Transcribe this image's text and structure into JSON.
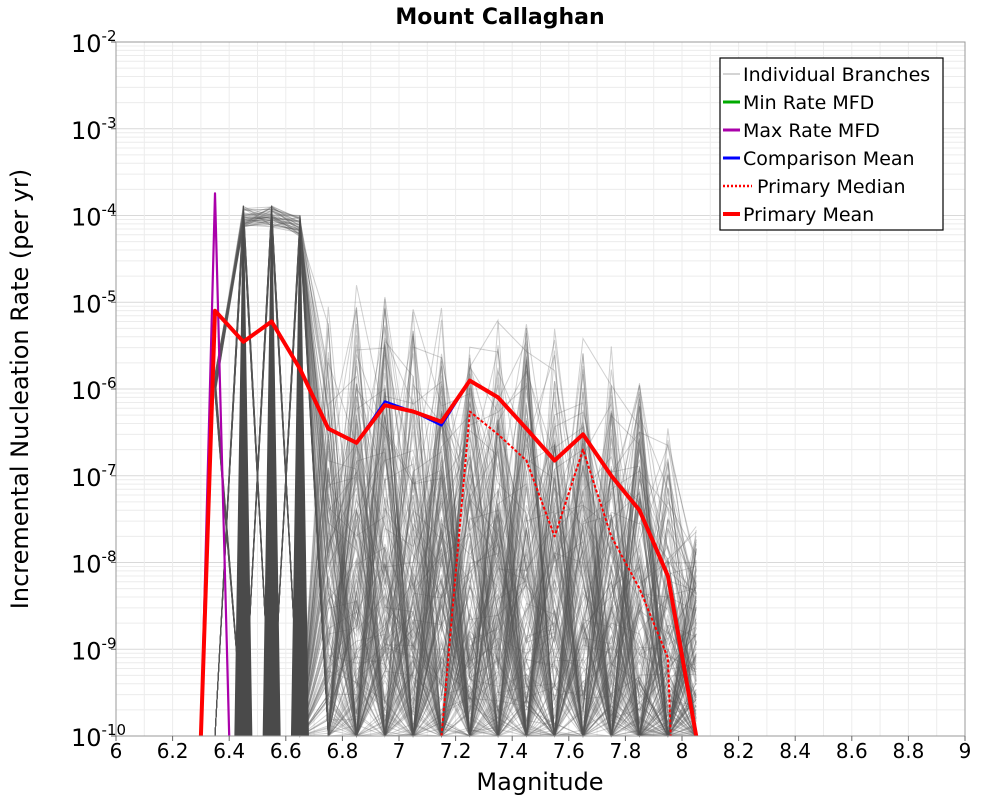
{
  "chart_data": {
    "type": "line",
    "title": "Mount Callaghan",
    "xlabel": "Magnitude",
    "ylabel": "Incremental Nucleation Rate (per yr)",
    "xlim": [
      6,
      9
    ],
    "ylim": [
      1e-10,
      0.01
    ],
    "yscale": "log",
    "grid": true,
    "legend_position": "top-right",
    "x_ticks": [
      "6",
      "6.2",
      "6.4",
      "6.6",
      "6.8",
      "7",
      "7.2",
      "7.4",
      "7.6",
      "7.8",
      "8",
      "8.2",
      "8.4",
      "8.6",
      "8.8",
      "9"
    ],
    "y_ticks": [
      {
        "base": "10",
        "exp": "-2"
      },
      {
        "base": "10",
        "exp": "-3"
      },
      {
        "base": "10",
        "exp": "-4"
      },
      {
        "base": "10",
        "exp": "-5"
      },
      {
        "base": "10",
        "exp": "-6"
      },
      {
        "base": "10",
        "exp": "-7"
      },
      {
        "base": "10",
        "exp": "-8"
      },
      {
        "base": "10",
        "exp": "-9"
      },
      {
        "base": "10",
        "exp": "-10"
      }
    ],
    "series": [
      {
        "name": "Individual Branches",
        "color": "#555555",
        "style": "solid-thin",
        "x": [
          6.35,
          6.45,
          6.55,
          6.65,
          6.75,
          6.85,
          6.95,
          7.05,
          7.15,
          7.25,
          7.35,
          7.45,
          7.55,
          7.65,
          7.75,
          7.85,
          7.95,
          8.05
        ],
        "peaks": [
          1.5e-06,
          0.00013,
          0.00013,
          0.0001,
          2e-05,
          1.7e-05,
          1.5e-05,
          1.2e-05,
          1e-05,
          1e-05,
          1e-05,
          8e-06,
          6e-06,
          5e-06,
          4e-06,
          2e-06,
          5e-07,
          4e-08
        ]
      },
      {
        "name": "Min Rate MFD",
        "color": "#00aa00",
        "style": "solid",
        "x": [],
        "y": []
      },
      {
        "name": "Max Rate MFD",
        "color": "#aa00aa",
        "style": "solid",
        "x": [
          6.3,
          6.35,
          6.4
        ],
        "y": [
          1e-10,
          0.00018,
          1e-10
        ]
      },
      {
        "name": "Comparison Mean",
        "color": "#0000ff",
        "style": "solid",
        "x": [
          6.3,
          6.35,
          6.45,
          6.55,
          6.65,
          6.75,
          6.85,
          6.95,
          7.05,
          7.15,
          7.25,
          7.35,
          7.45,
          7.55,
          7.65,
          7.75,
          7.85,
          7.95,
          8.05
        ],
        "y": [
          1e-10,
          8e-06,
          3.5e-06,
          6e-06,
          1.7e-06,
          3.4e-07,
          2.4e-07,
          7.2e-07,
          5.5e-07,
          3.8e-07,
          1.25e-06,
          8e-07,
          3.5e-07,
          1.5e-07,
          3e-07,
          1e-07,
          4e-08,
          7e-09,
          1e-10
        ]
      },
      {
        "name": "Primary Median",
        "color": "#ff0000",
        "style": "dotted",
        "x": [
          7.15,
          7.25,
          7.35,
          7.45,
          7.55,
          7.65,
          7.75,
          7.85,
          7.95,
          7.96
        ],
        "y": [
          1e-10,
          5.5e-07,
          3e-07,
          1.5e-07,
          2e-08,
          2e-07,
          2e-08,
          5e-09,
          8e-10,
          1e-10
        ]
      },
      {
        "name": "Primary Mean",
        "color": "#ff0000",
        "style": "solid-thick",
        "x": [
          6.3,
          6.35,
          6.45,
          6.55,
          6.65,
          6.75,
          6.85,
          6.95,
          7.05,
          7.15,
          7.25,
          7.35,
          7.45,
          7.55,
          7.65,
          7.75,
          7.85,
          7.95,
          8.05
        ],
        "y": [
          1e-10,
          8e-06,
          3.5e-06,
          6e-06,
          1.7e-06,
          3.5e-07,
          2.4e-07,
          6.5e-07,
          5.5e-07,
          4.2e-07,
          1.25e-06,
          8e-07,
          3.5e-07,
          1.5e-07,
          3e-07,
          1e-07,
          4e-08,
          7e-09,
          1e-10
        ]
      }
    ]
  }
}
